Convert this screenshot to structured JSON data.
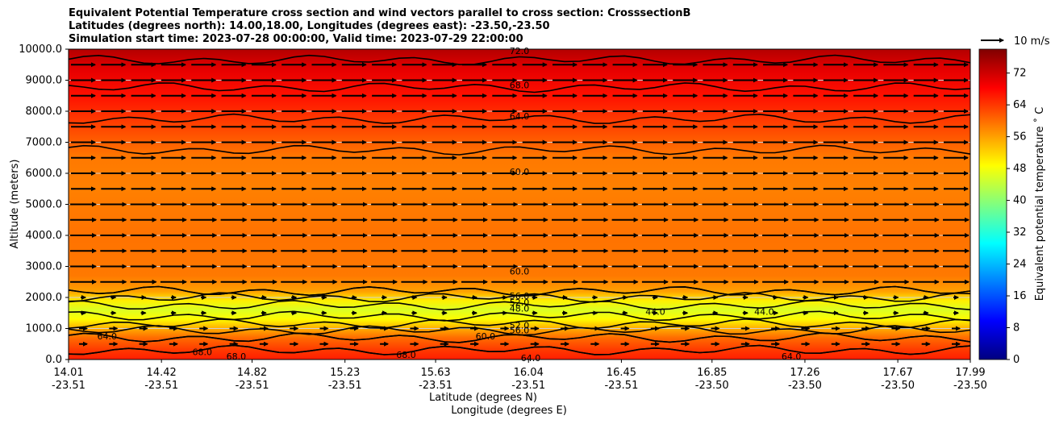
{
  "chart_data": {
    "type": "heatmap",
    "title_lines": [
      "Equivalent Potential Temperature cross section and wind vectors parallel to cross section: CrosssectionB",
      "Latitudes (degrees north): 14.00,18.00, Longitudes (degrees east): -23.50,-23.50",
      "Simulation start time: 2023-07-28 00:00:00, Valid time: 2023-07-29 22:00:00"
    ],
    "xlabel_lat": "Latitude (degrees N)",
    "xlabel_lon": "Longitude (degrees E)",
    "ylabel": "Altitude (meters)",
    "x_ticks": [
      {
        "lat": "14.01",
        "lon": "-23.51"
      },
      {
        "lat": "14.42",
        "lon": "-23.51"
      },
      {
        "lat": "14.82",
        "lon": "-23.51"
      },
      {
        "lat": "15.23",
        "lon": "-23.51"
      },
      {
        "lat": "15.63",
        "lon": "-23.51"
      },
      {
        "lat": "16.04",
        "lon": "-23.51"
      },
      {
        "lat": "16.45",
        "lon": "-23.51"
      },
      {
        "lat": "16.85",
        "lon": "-23.50"
      },
      {
        "lat": "17.26",
        "lon": "-23.50"
      },
      {
        "lat": "17.67",
        "lon": "-23.50"
      },
      {
        "lat": "17.99",
        "lon": "-23.50"
      }
    ],
    "y_ticks": [
      "0.0",
      "1000.0",
      "2000.0",
      "3000.0",
      "4000.0",
      "5000.0",
      "6000.0",
      "7000.0",
      "8000.0",
      "9000.0",
      "10000.0"
    ],
    "ylim": [
      0,
      10000
    ],
    "grid": "horizontal",
    "colorbar": {
      "label": "Equivalent potential temperature ˚ C",
      "ticks": [
        "0",
        "8",
        "16",
        "24",
        "32",
        "40",
        "48",
        "56",
        "64",
        "72"
      ],
      "range": [
        0,
        78
      ],
      "colormap": "jet"
    },
    "quiver_key": {
      "label": "10 m/s"
    },
    "field_profile": [
      {
        "alt": 0,
        "value": 66
      },
      {
        "alt": 300,
        "value": 64
      },
      {
        "alt": 700,
        "value": 60
      },
      {
        "alt": 1000,
        "value": 55
      },
      {
        "alt": 1300,
        "value": 49
      },
      {
        "alt": 1600,
        "value": 46
      },
      {
        "alt": 1900,
        "value": 50
      },
      {
        "alt": 2200,
        "value": 56
      },
      {
        "alt": 2700,
        "value": 59
      },
      {
        "alt": 4000,
        "value": 59.5
      },
      {
        "alt": 5500,
        "value": 58.5
      },
      {
        "alt": 6500,
        "value": 59
      },
      {
        "alt": 7500,
        "value": 63
      },
      {
        "alt": 8500,
        "value": 67
      },
      {
        "alt": 9300,
        "value": 70
      },
      {
        "alt": 10000,
        "value": 74
      }
    ],
    "contour_labels": [
      {
        "text": "72.0",
        "lat": 16.0,
        "alt": 9950
      },
      {
        "text": "68.0",
        "lat": 16.0,
        "alt": 8850
      },
      {
        "text": "64.0",
        "lat": 16.0,
        "alt": 7850
      },
      {
        "text": "60.0",
        "lat": 16.0,
        "alt": 6050
      },
      {
        "text": "60.0",
        "lat": 16.0,
        "alt": 2850
      },
      {
        "text": "56.0",
        "lat": 16.0,
        "alt": 2050
      },
      {
        "text": "52.0",
        "lat": 16.0,
        "alt": 1850
      },
      {
        "text": "48.0",
        "lat": 16.0,
        "alt": 1650
      },
      {
        "text": "44.0",
        "lat": 16.6,
        "alt": 1550
      },
      {
        "text": "44.0",
        "lat": 17.08,
        "alt": 1550
      },
      {
        "text": "52.0",
        "lat": 16.0,
        "alt": 1100
      },
      {
        "text": "56.0",
        "lat": 16.0,
        "alt": 950
      },
      {
        "text": "60.0",
        "lat": 15.85,
        "alt": 750
      },
      {
        "text": "64.0",
        "lat": 14.18,
        "alt": 750
      },
      {
        "text": "68.0",
        "lat": 14.6,
        "alt": 250
      },
      {
        "text": "68.0",
        "lat": 14.75,
        "alt": 100
      },
      {
        "text": "68.0",
        "lat": 15.5,
        "alt": 150
      },
      {
        "text": "64.0",
        "lat": 16.05,
        "alt": 50
      },
      {
        "text": "64.0",
        "lat": 17.2,
        "alt": 100
      }
    ]
  }
}
